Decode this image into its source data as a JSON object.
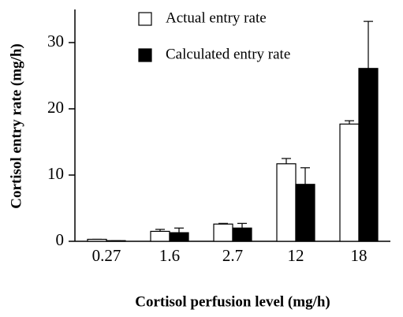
{
  "chart_data": {
    "type": "bar",
    "xlabel": "Cortisol perfusion level (mg/h)",
    "ylabel": "Cortisol entry rate (mg/h)",
    "categories": [
      "0.27",
      "1.6",
      "2.7",
      "12",
      "18"
    ],
    "series": [
      {
        "name": "Actual entry rate",
        "color": "#ffffff",
        "values": [
          0.3,
          1.5,
          2.6,
          11.7,
          17.7
        ],
        "errors": [
          0,
          0.3,
          0.1,
          0.8,
          0.5
        ]
      },
      {
        "name": "Calculated entry rate",
        "color": "#000000",
        "values": [
          0.1,
          1.3,
          2.0,
          8.6,
          26.1
        ],
        "errors": [
          0,
          0.7,
          0.7,
          2.5,
          7.1
        ]
      }
    ],
    "ylim": [
      0,
      35
    ],
    "yticks": [
      0,
      10,
      20,
      30
    ]
  }
}
